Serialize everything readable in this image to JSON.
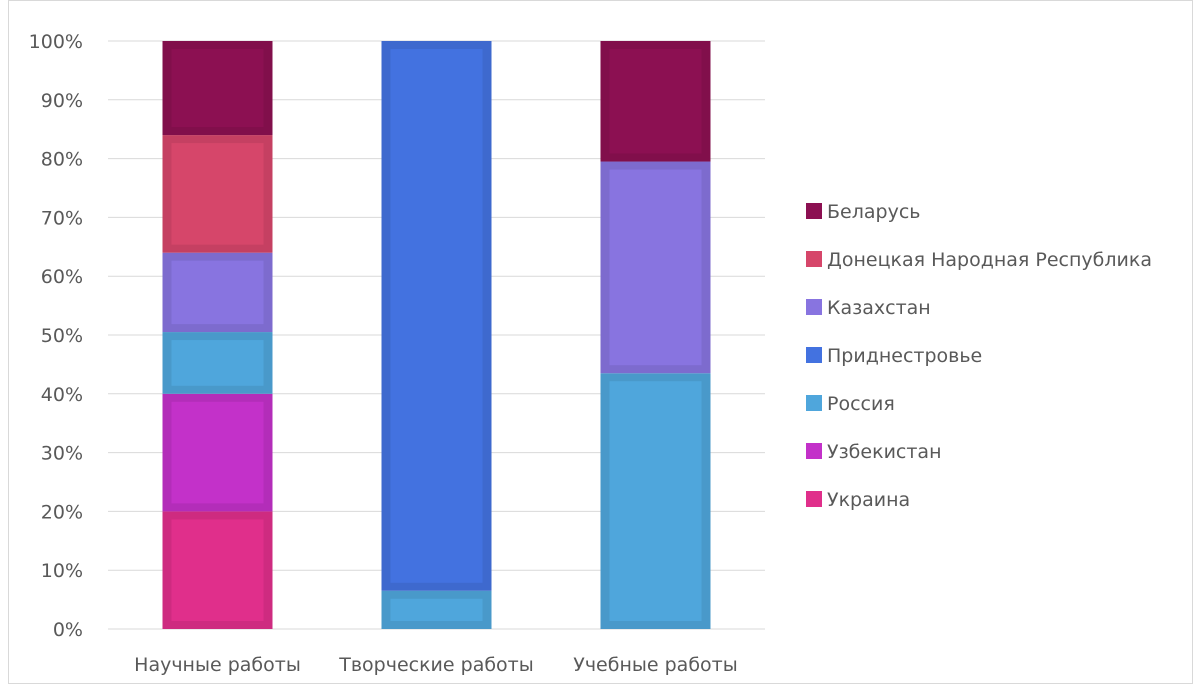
{
  "chart_data": {
    "type": "bar",
    "stacked": "percent",
    "title": "",
    "xlabel": "",
    "ylabel": "",
    "ylim": [
      0,
      100
    ],
    "y_ticks": [
      "0%",
      "10%",
      "20%",
      "30%",
      "40%",
      "50%",
      "60%",
      "70%",
      "80%",
      "90%",
      "100%"
    ],
    "categories": [
      "Научные работы",
      "Творческие работы",
      "Учебные работы"
    ],
    "grid": true,
    "legend_position": "right",
    "series": [
      {
        "name": "Украина",
        "color": "#e02f8b",
        "values": [
          20,
          0,
          0
        ]
      },
      {
        "name": "Узбекистан",
        "color": "#c331c9",
        "values": [
          20,
          0,
          0
        ]
      },
      {
        "name": "Россия",
        "color": "#4fa6dc",
        "values": [
          10.5,
          6.5,
          43.5
        ]
      },
      {
        "name": "Приднестровье",
        "color": "#4372e0",
        "values": [
          0,
          93.5,
          0
        ]
      },
      {
        "name": "Казахстан",
        "color": "#8874e0",
        "values": [
          13.5,
          0,
          36
        ]
      },
      {
        "name": "Донецкая Народная Республика",
        "color": "#d6466a",
        "values": [
          20,
          0,
          0
        ]
      },
      {
        "name": "Беларусь",
        "color": "#8c1052",
        "values": [
          16,
          0,
          20.5
        ]
      }
    ],
    "legend_order": [
      "Беларусь",
      "Донецкая Народная Республика",
      "Казахстан",
      "Приднестровье",
      "Россия",
      "Узбекистан",
      "Украина"
    ]
  }
}
